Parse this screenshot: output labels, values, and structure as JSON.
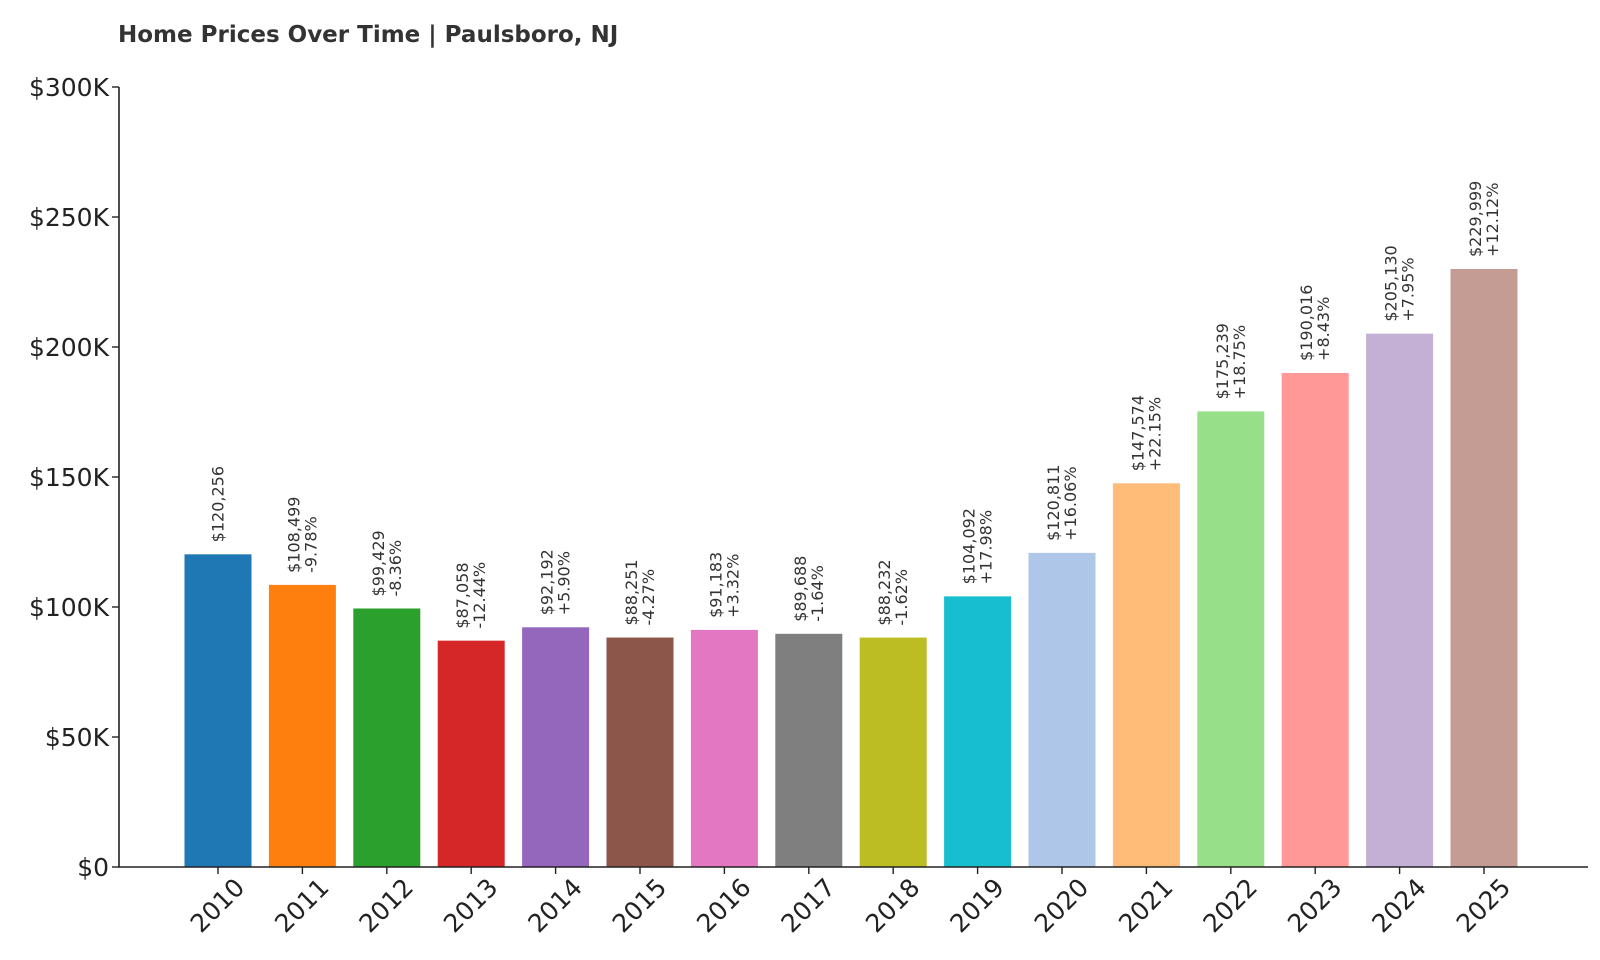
{
  "chart_data": {
    "type": "bar",
    "title": "Home Prices Over Time | Paulsboro, NJ",
    "xlabel": "",
    "ylabel": "",
    "ylim": [
      0,
      300000
    ],
    "yticks": [
      {
        "value": 0,
        "label": "$0"
      },
      {
        "value": 50000,
        "label": "$50K"
      },
      {
        "value": 100000,
        "label": "$100K"
      },
      {
        "value": 150000,
        "label": "$150K"
      },
      {
        "value": 200000,
        "label": "$200K"
      },
      {
        "value": 250000,
        "label": "$250K"
      },
      {
        "value": 300000,
        "label": "$300K"
      }
    ],
    "grid": false,
    "categories": [
      "2010",
      "2011",
      "2012",
      "2013",
      "2014",
      "2015",
      "2016",
      "2017",
      "2018",
      "2019",
      "2020",
      "2021",
      "2022",
      "2023",
      "2024",
      "2025"
    ],
    "values": [
      120256,
      108499,
      99429,
      87058,
      92192,
      88251,
      91183,
      89688,
      88232,
      104092,
      120811,
      147574,
      175239,
      190016,
      205130,
      229999
    ],
    "value_labels": [
      "$120,256",
      "$108,499",
      "$99,429",
      "$87,058",
      "$92,192",
      "$88,251",
      "$91,183",
      "$89,688",
      "$88,232",
      "$104,092",
      "$120,811",
      "$147,574",
      "$175,239",
      "$190,016",
      "$205,130",
      "$229,999"
    ],
    "change_labels": [
      "",
      "-9.78%",
      "-8.36%",
      "-12.44%",
      "+5.90%",
      "-4.27%",
      "+3.32%",
      "-1.64%",
      "-1.62%",
      "+17.98%",
      "+16.06%",
      "+22.15%",
      "+18.75%",
      "+8.43%",
      "+7.95%",
      "+12.12%"
    ],
    "colors": [
      "#1f77b4",
      "#ff7f0e",
      "#2ca02c",
      "#d62728",
      "#9467bd",
      "#8c564b",
      "#e377c2",
      "#7f7f7f",
      "#bcbd22",
      "#17becf",
      "#aec7e8",
      "#ffbb78",
      "#98df8a",
      "#ff9896",
      "#c5b0d5",
      "#c49c94"
    ]
  }
}
